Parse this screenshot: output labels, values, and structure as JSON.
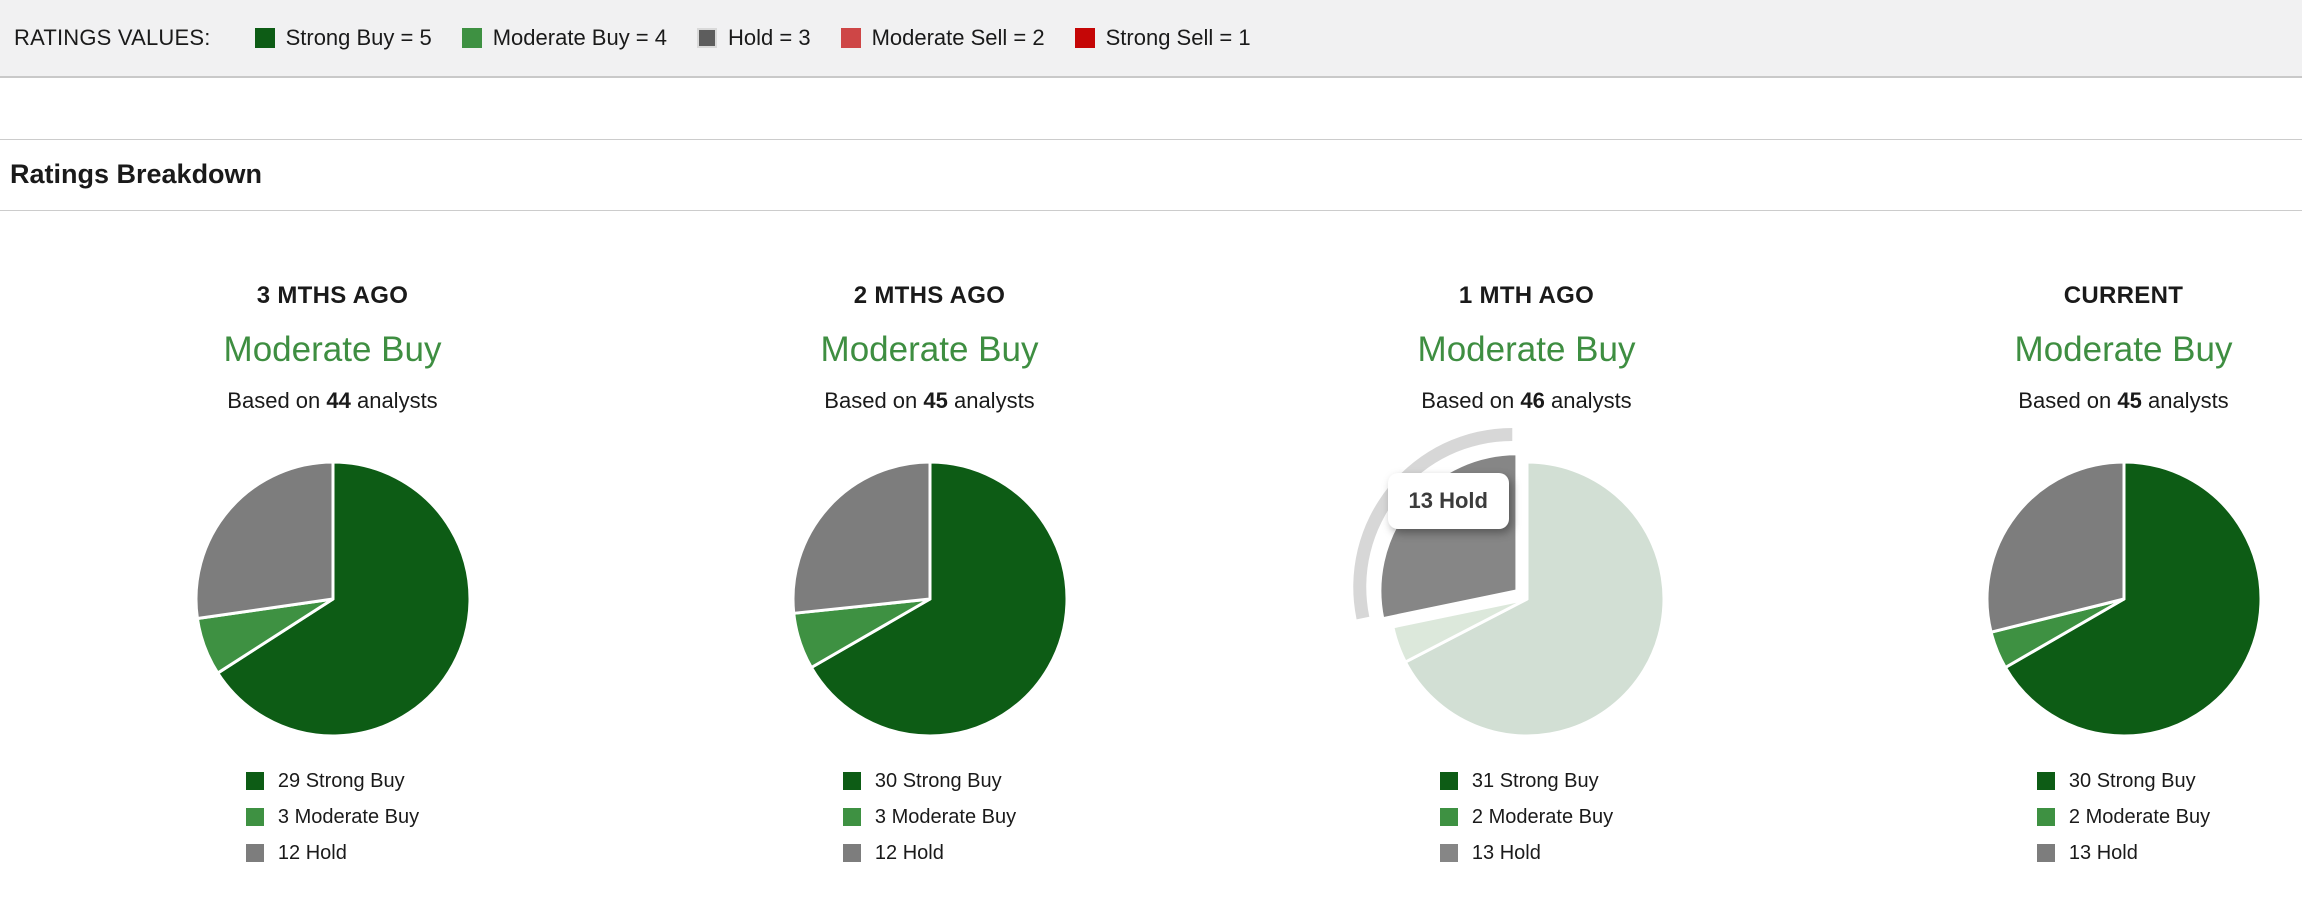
{
  "theme": {
    "consensus_green": "#3e8e41",
    "bar_background": "#f1f1f2",
    "divider": "#cccccc",
    "slice_stroke": "#ffffff"
  },
  "ratings_values_bar": {
    "label": "RATINGS VALUES:",
    "items": [
      {
        "label": "Strong Buy = 5",
        "color": "#0d5c15"
      },
      {
        "label": "Moderate Buy = 4",
        "color": "#3e9142"
      },
      {
        "label": "Hold = 3",
        "color": "#5d5d5d",
        "border": "#d9d9d9"
      },
      {
        "label": "Moderate Sell = 2",
        "color": "#ce4646"
      },
      {
        "label": "Strong Sell = 1",
        "color": "#c50606"
      }
    ]
  },
  "section": {
    "title": "Ratings Breakdown"
  },
  "chart_data": [
    {
      "type": "pie",
      "title": "3 MTHS AGO",
      "consensus": "Moderate Buy",
      "based_on": {
        "prefix": "Based on",
        "count": "44",
        "suffix": "analysts"
      },
      "slices": [
        {
          "label": "Strong Buy",
          "value": 29,
          "color": "#0d5c15"
        },
        {
          "label": "Moderate Buy",
          "value": 3,
          "color": "#3e9142"
        },
        {
          "label": "Hold",
          "value": 12,
          "color": "#7d7d7d"
        }
      ],
      "legend": [
        "29 Strong Buy",
        "3 Moderate Buy",
        "12 Hold"
      ]
    },
    {
      "type": "pie",
      "title": "2 MTHS AGO",
      "consensus": "Moderate Buy",
      "based_on": {
        "prefix": "Based on",
        "count": "45",
        "suffix": "analysts"
      },
      "slices": [
        {
          "label": "Strong Buy",
          "value": 30,
          "color": "#0d5c15"
        },
        {
          "label": "Moderate Buy",
          "value": 3,
          "color": "#3e9142"
        },
        {
          "label": "Hold",
          "value": 12,
          "color": "#7d7d7d"
        }
      ],
      "legend": [
        "30 Strong Buy",
        "3 Moderate Buy",
        "12 Hold"
      ]
    },
    {
      "type": "pie",
      "title": "1 MTH AGO",
      "consensus": "Moderate Buy",
      "based_on": {
        "prefix": "Based on",
        "count": "46",
        "suffix": "analysts"
      },
      "slices": [
        {
          "label": "Strong Buy",
          "value": 31,
          "color": "#0d5c15"
        },
        {
          "label": "Moderate Buy",
          "value": 2,
          "color": "#3e9142"
        },
        {
          "label": "Hold",
          "value": 13,
          "color": "#868686"
        }
      ],
      "legend": [
        "31 Strong Buy",
        "2 Moderate Buy",
        "13 Hold"
      ],
      "hover": {
        "slice_label": "Hold",
        "tooltip": "13 Hold",
        "dimmed_colors": {
          "Strong Buy": "#d2dfd4",
          "Moderate Buy": "#dce8db"
        },
        "halo_color": "#d7d7d7"
      }
    },
    {
      "type": "pie",
      "title": "CURRENT",
      "consensus": "Moderate Buy",
      "based_on": {
        "prefix": "Based on",
        "count": "45",
        "suffix": "analysts"
      },
      "slices": [
        {
          "label": "Strong Buy",
          "value": 30,
          "color": "#0d5c15"
        },
        {
          "label": "Moderate Buy",
          "value": 2,
          "color": "#3e9142"
        },
        {
          "label": "Hold",
          "value": 13,
          "color": "#7d7d7d"
        }
      ],
      "legend": [
        "30 Strong Buy",
        "2 Moderate Buy",
        "13 Hold"
      ]
    }
  ]
}
